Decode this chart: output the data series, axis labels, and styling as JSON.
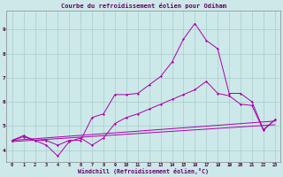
{
  "title": "Courbe du refroidissement éolien pour Odiham",
  "xlabel": "Windchill (Refroidissement éolien,°C)",
  "background_color": "#cce8e8",
  "grid_color": "#aacccc",
  "line_color": "#aa00aa",
  "xlim": [
    -0.5,
    23.5
  ],
  "ylim": [
    3.5,
    9.8
  ],
  "xticks": [
    0,
    1,
    2,
    3,
    4,
    5,
    6,
    7,
    8,
    9,
    10,
    11,
    12,
    13,
    14,
    15,
    16,
    17,
    18,
    19,
    20,
    21,
    22,
    23
  ],
  "yticks": [
    4,
    5,
    6,
    7,
    8,
    9
  ],
  "line1_x": [
    0,
    1,
    2,
    3,
    4,
    5,
    6,
    7,
    8,
    9,
    10,
    11,
    12,
    13,
    14,
    15,
    16,
    17,
    18,
    19,
    20,
    21,
    22,
    23
  ],
  "line1_y": [
    4.4,
    4.6,
    4.4,
    4.4,
    4.2,
    4.4,
    4.4,
    5.35,
    5.5,
    6.3,
    6.3,
    6.35,
    6.7,
    7.05,
    7.65,
    8.6,
    9.25,
    8.55,
    8.2,
    6.35,
    6.35,
    6.0,
    4.85,
    5.25
  ],
  "line2_x": [
    0,
    1,
    2,
    3,
    4,
    5,
    6,
    7,
    8,
    9,
    10,
    11,
    12,
    13,
    14,
    15,
    16,
    17,
    18,
    19,
    20,
    21,
    22,
    23
  ],
  "line2_y": [
    4.4,
    4.55,
    4.4,
    4.2,
    3.75,
    4.35,
    4.5,
    4.2,
    4.5,
    5.1,
    5.35,
    5.5,
    5.7,
    5.9,
    6.1,
    6.3,
    6.5,
    6.85,
    6.35,
    6.25,
    5.9,
    5.85,
    4.82,
    5.25
  ],
  "line3_x": [
    0,
    23
  ],
  "line3_y": [
    4.4,
    5.2
  ],
  "line4_x": [
    0,
    23
  ],
  "line4_y": [
    4.35,
    5.05
  ],
  "title_color": "#660066",
  "xlabel_color": "#660066"
}
